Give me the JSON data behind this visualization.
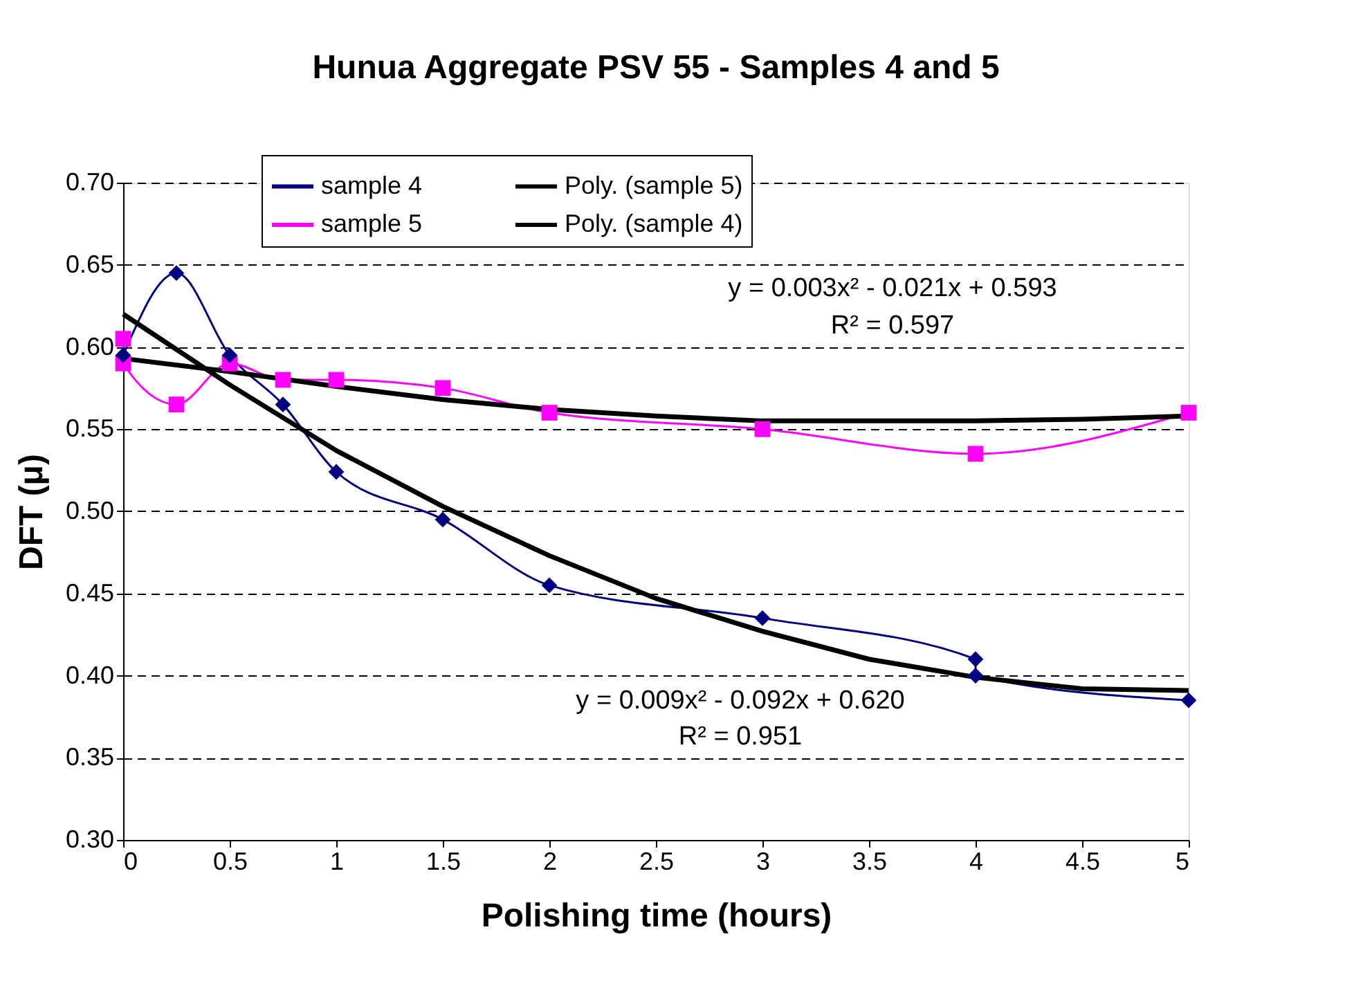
{
  "chart_data": {
    "type": "line",
    "title": "Hunua Aggregate PSV 55 - Samples 4 and 5",
    "xlabel": "Polishing time (hours)",
    "ylabel": "DFT (μ)",
    "xlim": [
      0,
      5
    ],
    "xticks": [
      0,
      0.5,
      1,
      1.5,
      2,
      2.5,
      3,
      3.5,
      4,
      4.5,
      5
    ],
    "ylim": [
      0.3,
      0.7
    ],
    "yticks": [
      {
        "value": 0.3,
        "label": "0.30"
      },
      {
        "value": 0.35,
        "label": "0.35"
      },
      {
        "value": 0.4,
        "label": "0.40"
      },
      {
        "value": 0.45,
        "label": "0.45"
      },
      {
        "value": 0.5,
        "label": "0.50"
      },
      {
        "value": 0.55,
        "label": "0.55"
      },
      {
        "value": 0.6,
        "label": "0.60"
      },
      {
        "value": 0.65,
        "label": "0.65"
      },
      {
        "value": 0.7,
        "label": "0.70"
      }
    ],
    "grid": "y",
    "legend": "top",
    "series": [
      {
        "name": "sample 4",
        "color": "#000080",
        "marker": "diamond",
        "x": [
          0,
          0.25,
          0.5,
          0.75,
          1,
          1.5,
          2,
          3,
          4,
          4,
          5
        ],
        "values": [
          0.595,
          0.645,
          0.595,
          0.565,
          0.524,
          0.495,
          0.455,
          0.435,
          0.41,
          0.4,
          0.385
        ]
      },
      {
        "name": "sample 5",
        "color": "#ff00ff",
        "marker": "square",
        "x": [
          0,
          0,
          0.25,
          0.5,
          0.75,
          1,
          1.5,
          2,
          3,
          4,
          5
        ],
        "values": [
          0.605,
          0.59,
          0.565,
          0.59,
          0.58,
          0.58,
          0.575,
          0.56,
          0.55,
          0.535,
          0.56
        ]
      },
      {
        "name": "Poly. (sample 5)",
        "color": "#000000",
        "marker": "none",
        "x": [
          0,
          0.5,
          1,
          1.5,
          2,
          2.5,
          3,
          3.5,
          4,
          4.5,
          5
        ],
        "values": [
          0.593,
          0.585,
          0.576,
          0.568,
          0.562,
          0.558,
          0.555,
          0.555,
          0.555,
          0.556,
          0.558
        ]
      },
      {
        "name": "Poly. (sample 4)",
        "color": "#000000",
        "marker": "none",
        "x": [
          0,
          0.5,
          1,
          1.5,
          2,
          2.5,
          3,
          3.5,
          4,
          4.5,
          5
        ],
        "values": [
          0.62,
          0.577,
          0.537,
          0.503,
          0.473,
          0.447,
          0.427,
          0.41,
          0.399,
          0.392,
          0.391
        ]
      }
    ],
    "annotations": [
      "y = 0.003x² - 0.021x + 0.593",
      "R² = 0.597",
      "y = 0.009x² - 0.092x + 0.620",
      "R² = 0.951"
    ]
  }
}
